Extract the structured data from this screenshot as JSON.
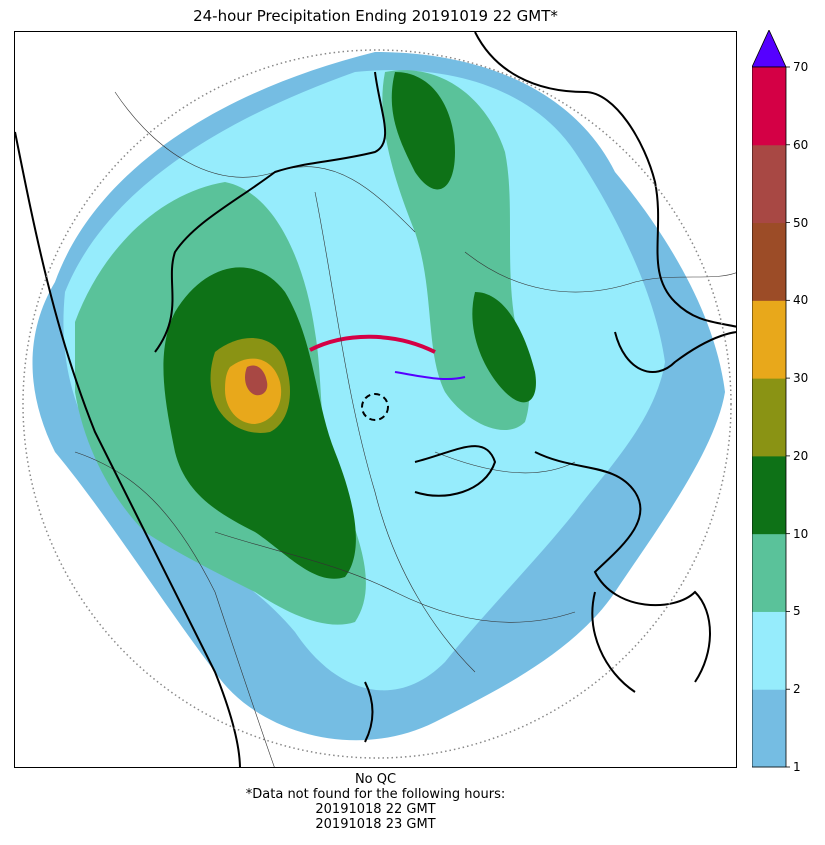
{
  "title": "24-hour Precipitation Ending 20191019 22 GMT*",
  "colorbar": {
    "ticks": [
      1,
      2,
      5,
      10,
      20,
      30,
      40,
      50,
      60,
      70
    ],
    "bins": [
      {
        "from": 1,
        "to": 2,
        "color": "#75bde3"
      },
      {
        "from": 2,
        "to": 5,
        "color": "#96ecfc"
      },
      {
        "from": 5,
        "to": 10,
        "color": "#5ac29a"
      },
      {
        "from": 10,
        "to": 20,
        "color": "#0e7217"
      },
      {
        "from": 20,
        "to": 30,
        "color": "#8a9314"
      },
      {
        "from": 30,
        "to": 40,
        "color": "#e8a81b"
      },
      {
        "from": 40,
        "to": 50,
        "color": "#9c4c27"
      },
      {
        "from": 50,
        "to": 60,
        "color": "#a84844"
      },
      {
        "from": 60,
        "to": 70,
        "color": "#d40045"
      }
    ],
    "extend_color": "#5500ff",
    "units": ""
  },
  "map": {
    "range_ring": "dotted",
    "radar_site_marker": "dashed-circle"
  },
  "footer": {
    "qc": "No QC",
    "note": "*Data not found for the following hours:",
    "missing_hours": [
      "20191018 22 GMT",
      "20191018 23 GMT"
    ]
  }
}
